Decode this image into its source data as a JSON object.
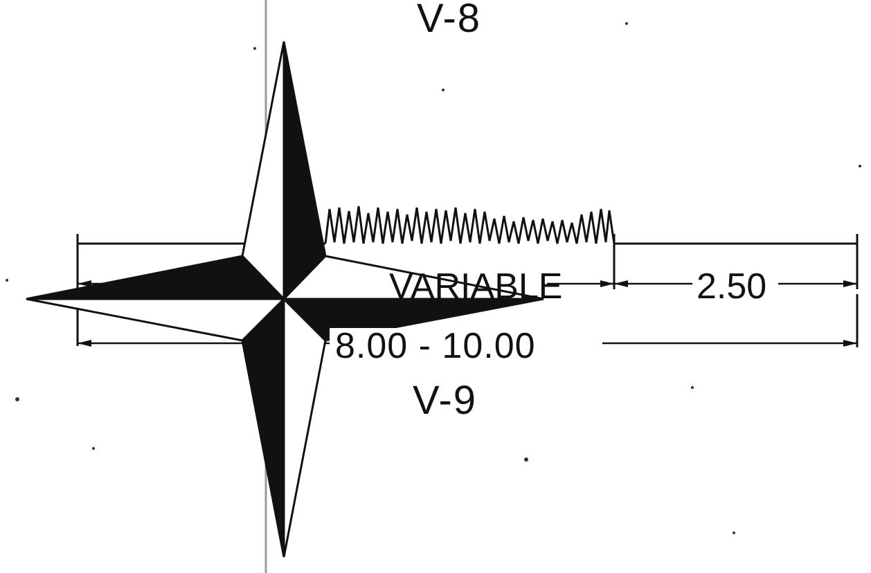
{
  "drawing": {
    "view_label_top": "V-8",
    "view_label_bottom": "V-9",
    "dim_variable": "VARIABLE",
    "dim_right": "2.50",
    "dim_overall": "8.00 - 10.00"
  },
  "colors": {
    "ink": "#111111",
    "paper": "#ffffff",
    "guide_line": "#999999"
  },
  "icons": {
    "compass": "compass-rose-icon",
    "break": "break-line-icon"
  }
}
